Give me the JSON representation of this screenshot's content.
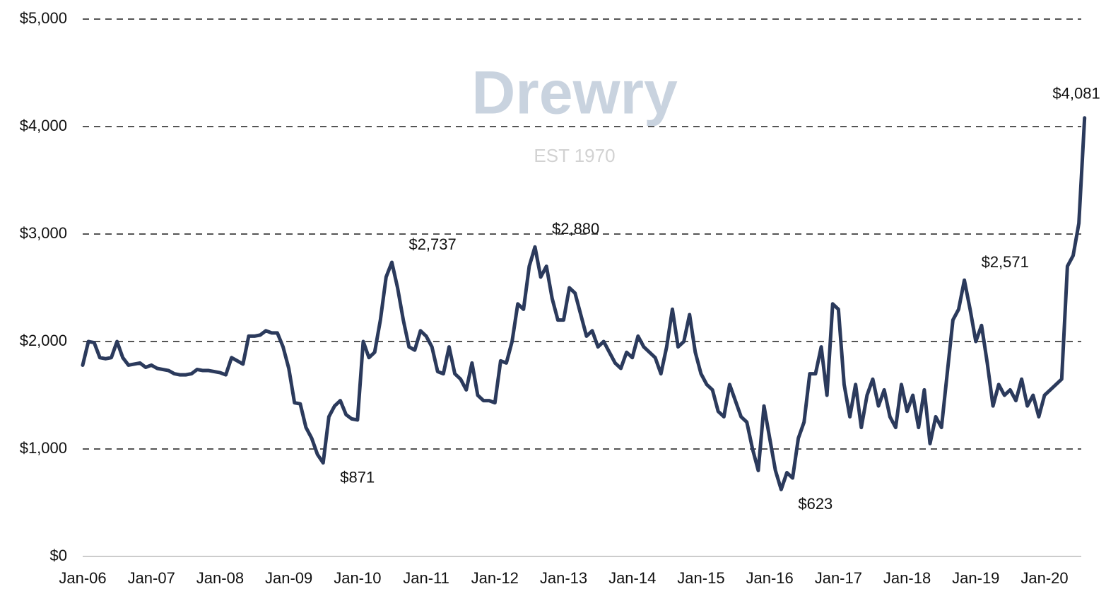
{
  "chart_data": {
    "type": "line",
    "watermark": {
      "name": "Drewry",
      "established": "EST 1970"
    },
    "categories": [
      "Jan-06",
      null,
      null,
      null,
      null,
      null,
      null,
      null,
      null,
      null,
      null,
      null,
      "Jan-07",
      null,
      null,
      null,
      null,
      null,
      null,
      null,
      null,
      null,
      null,
      null,
      "Jan-08",
      null,
      null,
      null,
      null,
      null,
      null,
      null,
      null,
      null,
      null,
      null,
      "Jan-09",
      null,
      null,
      null,
      null,
      null,
      null,
      null,
      null,
      null,
      null,
      null,
      "Jan-10",
      null,
      null,
      null,
      null,
      null,
      null,
      null,
      null,
      null,
      null,
      null,
      "Jan-11",
      null,
      null,
      null,
      null,
      null,
      null,
      null,
      null,
      null,
      null,
      null,
      "Jan-12",
      null,
      null,
      null,
      null,
      null,
      null,
      null,
      null,
      null,
      null,
      null,
      "Jan-13",
      null,
      null,
      null,
      null,
      null,
      null,
      null,
      null,
      null,
      null,
      null,
      "Jan-14",
      null,
      null,
      null,
      null,
      null,
      null,
      null,
      null,
      null,
      null,
      null,
      "Jan-15",
      null,
      null,
      null,
      null,
      null,
      null,
      null,
      null,
      null,
      null,
      null,
      "Jan-16",
      null,
      null,
      null,
      null,
      null,
      null,
      null,
      null,
      null,
      null,
      null,
      "Jan-17",
      null,
      null,
      null,
      null,
      null,
      null,
      null,
      null,
      null,
      null,
      null,
      "Jan-18",
      null,
      null,
      null,
      null,
      null,
      null,
      null,
      null,
      null,
      null,
      null,
      "Jan-19",
      null,
      null,
      null,
      null,
      null,
      null,
      null,
      null,
      null,
      null,
      null,
      "Jan-20",
      null,
      null,
      null,
      null,
      null,
      null,
      null
    ],
    "values": [
      1780,
      2000,
      1990,
      1850,
      1840,
      1850,
      2000,
      1850,
      1780,
      1790,
      1800,
      1760,
      1780,
      1750,
      1740,
      1730,
      1700,
      1690,
      1690,
      1700,
      1740,
      1730,
      1730,
      1720,
      1710,
      1690,
      1850,
      1820,
      1790,
      2050,
      2050,
      2060,
      2100,
      2080,
      2080,
      1950,
      1750,
      1430,
      1420,
      1200,
      1100,
      950,
      871,
      1300,
      1400,
      1450,
      1320,
      1280,
      1270,
      2000,
      1850,
      1900,
      2200,
      2600,
      2737,
      2500,
      2200,
      1950,
      1920,
      2100,
      2050,
      1950,
      1720,
      1700,
      1950,
      1700,
      1650,
      1550,
      1800,
      1500,
      1450,
      1450,
      1430,
      1820,
      1800,
      2000,
      2350,
      2300,
      2700,
      2880,
      2600,
      2700,
      2400,
      2200,
      2200,
      2500,
      2450,
      2250,
      2050,
      2100,
      1950,
      2000,
      1900,
      1800,
      1750,
      1900,
      1850,
      2050,
      1950,
      1900,
      1850,
      1700,
      1950,
      2300,
      1950,
      2000,
      2250,
      1900,
      1700,
      1600,
      1550,
      1350,
      1300,
      1600,
      1450,
      1300,
      1250,
      1000,
      800,
      1400,
      1100,
      800,
      623,
      780,
      730,
      1100,
      1250,
      1700,
      1700,
      1950,
      1500,
      2350,
      2300,
      1600,
      1300,
      1600,
      1200,
      1500,
      1650,
      1400,
      1550,
      1300,
      1200,
      1600,
      1350,
      1500,
      1200,
      1550,
      1050,
      1300,
      1200,
      1700,
      2200,
      2300,
      2571,
      2300,
      2000,
      2150,
      1800,
      1400,
      1600,
      1500,
      1550,
      1450,
      1650,
      1400,
      1500,
      1300,
      1500,
      1550,
      1600,
      1650,
      2700,
      2800,
      3100,
      4081
    ],
    "value_labels": [
      null,
      null,
      null,
      null,
      null,
      null,
      null,
      null,
      null,
      null,
      null,
      null,
      null,
      null,
      null,
      null,
      null,
      null,
      null,
      null,
      null,
      null,
      null,
      null,
      null,
      null,
      null,
      null,
      null,
      null,
      null,
      null,
      null,
      null,
      null,
      null,
      null,
      null,
      null,
      null,
      null,
      null,
      "$871",
      null,
      null,
      null,
      null,
      null,
      null,
      null,
      null,
      null,
      null,
      null,
      "$2,737",
      null,
      null,
      null,
      null,
      null,
      null,
      null,
      null,
      null,
      null,
      null,
      null,
      null,
      null,
      null,
      null,
      null,
      null,
      null,
      null,
      null,
      null,
      null,
      null,
      "$2,880",
      null,
      null,
      null,
      null,
      null,
      null,
      null,
      null,
      null,
      null,
      null,
      null,
      null,
      null,
      null,
      null,
      null,
      null,
      null,
      null,
      null,
      null,
      null,
      null,
      null,
      null,
      null,
      null,
      null,
      null,
      null,
      null,
      null,
      null,
      null,
      null,
      null,
      null,
      null,
      null,
      null,
      null,
      "$623",
      null,
      null,
      null,
      null,
      null,
      null,
      null,
      null,
      null,
      null,
      null,
      null,
      null,
      null,
      null,
      null,
      null,
      null,
      null,
      null,
      null,
      null,
      null,
      null,
      null,
      null,
      null,
      null,
      null,
      null,
      null,
      "$2,571",
      null,
      null,
      null,
      null,
      null,
      null,
      null,
      null,
      null,
      null,
      null,
      null,
      null,
      null,
      null,
      null,
      null,
      null,
      null,
      null,
      "$4,081"
    ],
    "color": "#2b3a5c",
    "ylim": [
      0,
      5000
    ],
    "yticks": [
      {
        "value": 0,
        "label": "$0"
      },
      {
        "value": 1000,
        "label": "$1,000"
      },
      {
        "value": 2000,
        "label": "$2,000"
      },
      {
        "value": 3000,
        "label": "$3,000"
      },
      {
        "value": 4000,
        "label": "$4,000"
      },
      {
        "value": 5000,
        "label": "$5,000"
      }
    ],
    "grid": true
  }
}
